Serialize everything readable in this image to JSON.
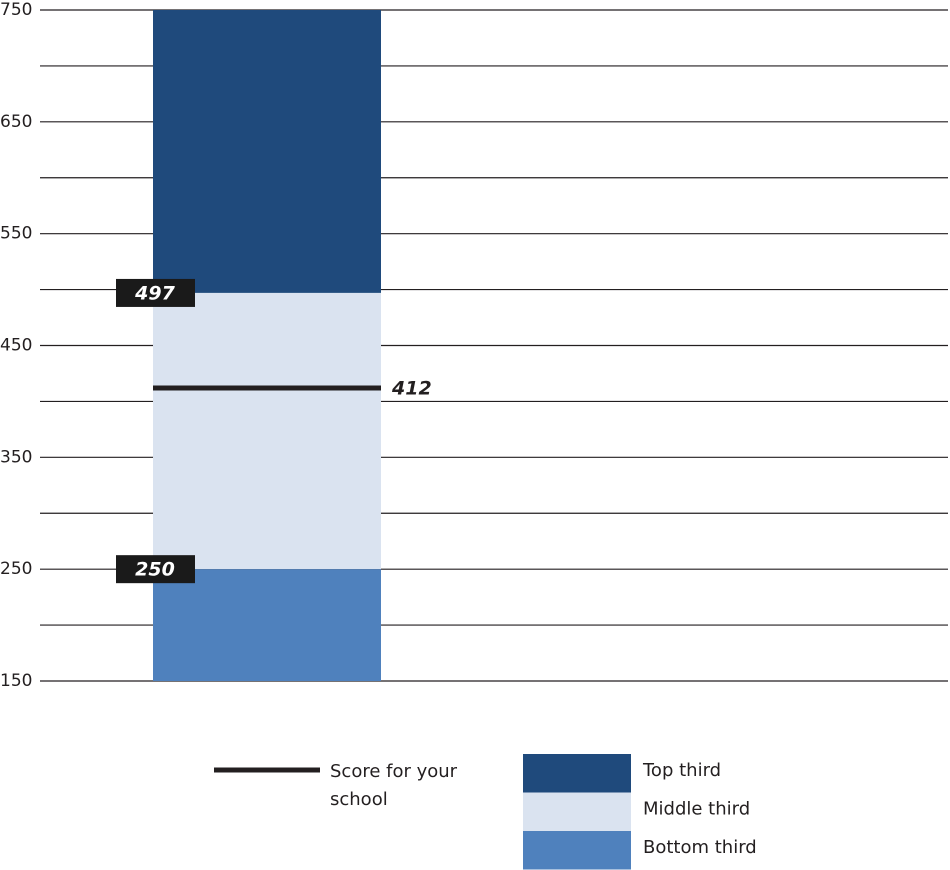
{
  "chart_data": {
    "type": "range_bar",
    "series": [
      {
        "name": "Top third",
        "color": "#1f4a7c",
        "low": [
          497
        ],
        "high": [
          750
        ]
      },
      {
        "name": "Middle third",
        "color": "#dae3f0",
        "low": [
          250
        ],
        "high": [
          497
        ]
      },
      {
        "name": "Bottom third",
        "color": "#4f81bd",
        "low": [
          150
        ],
        "high": [
          250
        ]
      }
    ],
    "score": {
      "name": "Score for your school",
      "value": 412,
      "color": "#231f20"
    },
    "thresholds": [
      497,
      250
    ],
    "ylim": [
      150,
      750
    ],
    "yticks": [
      150,
      250,
      350,
      450,
      550,
      650,
      750
    ],
    "minor_yticks": [
      200,
      300,
      400,
      500,
      600,
      700
    ],
    "grid": true
  }
}
